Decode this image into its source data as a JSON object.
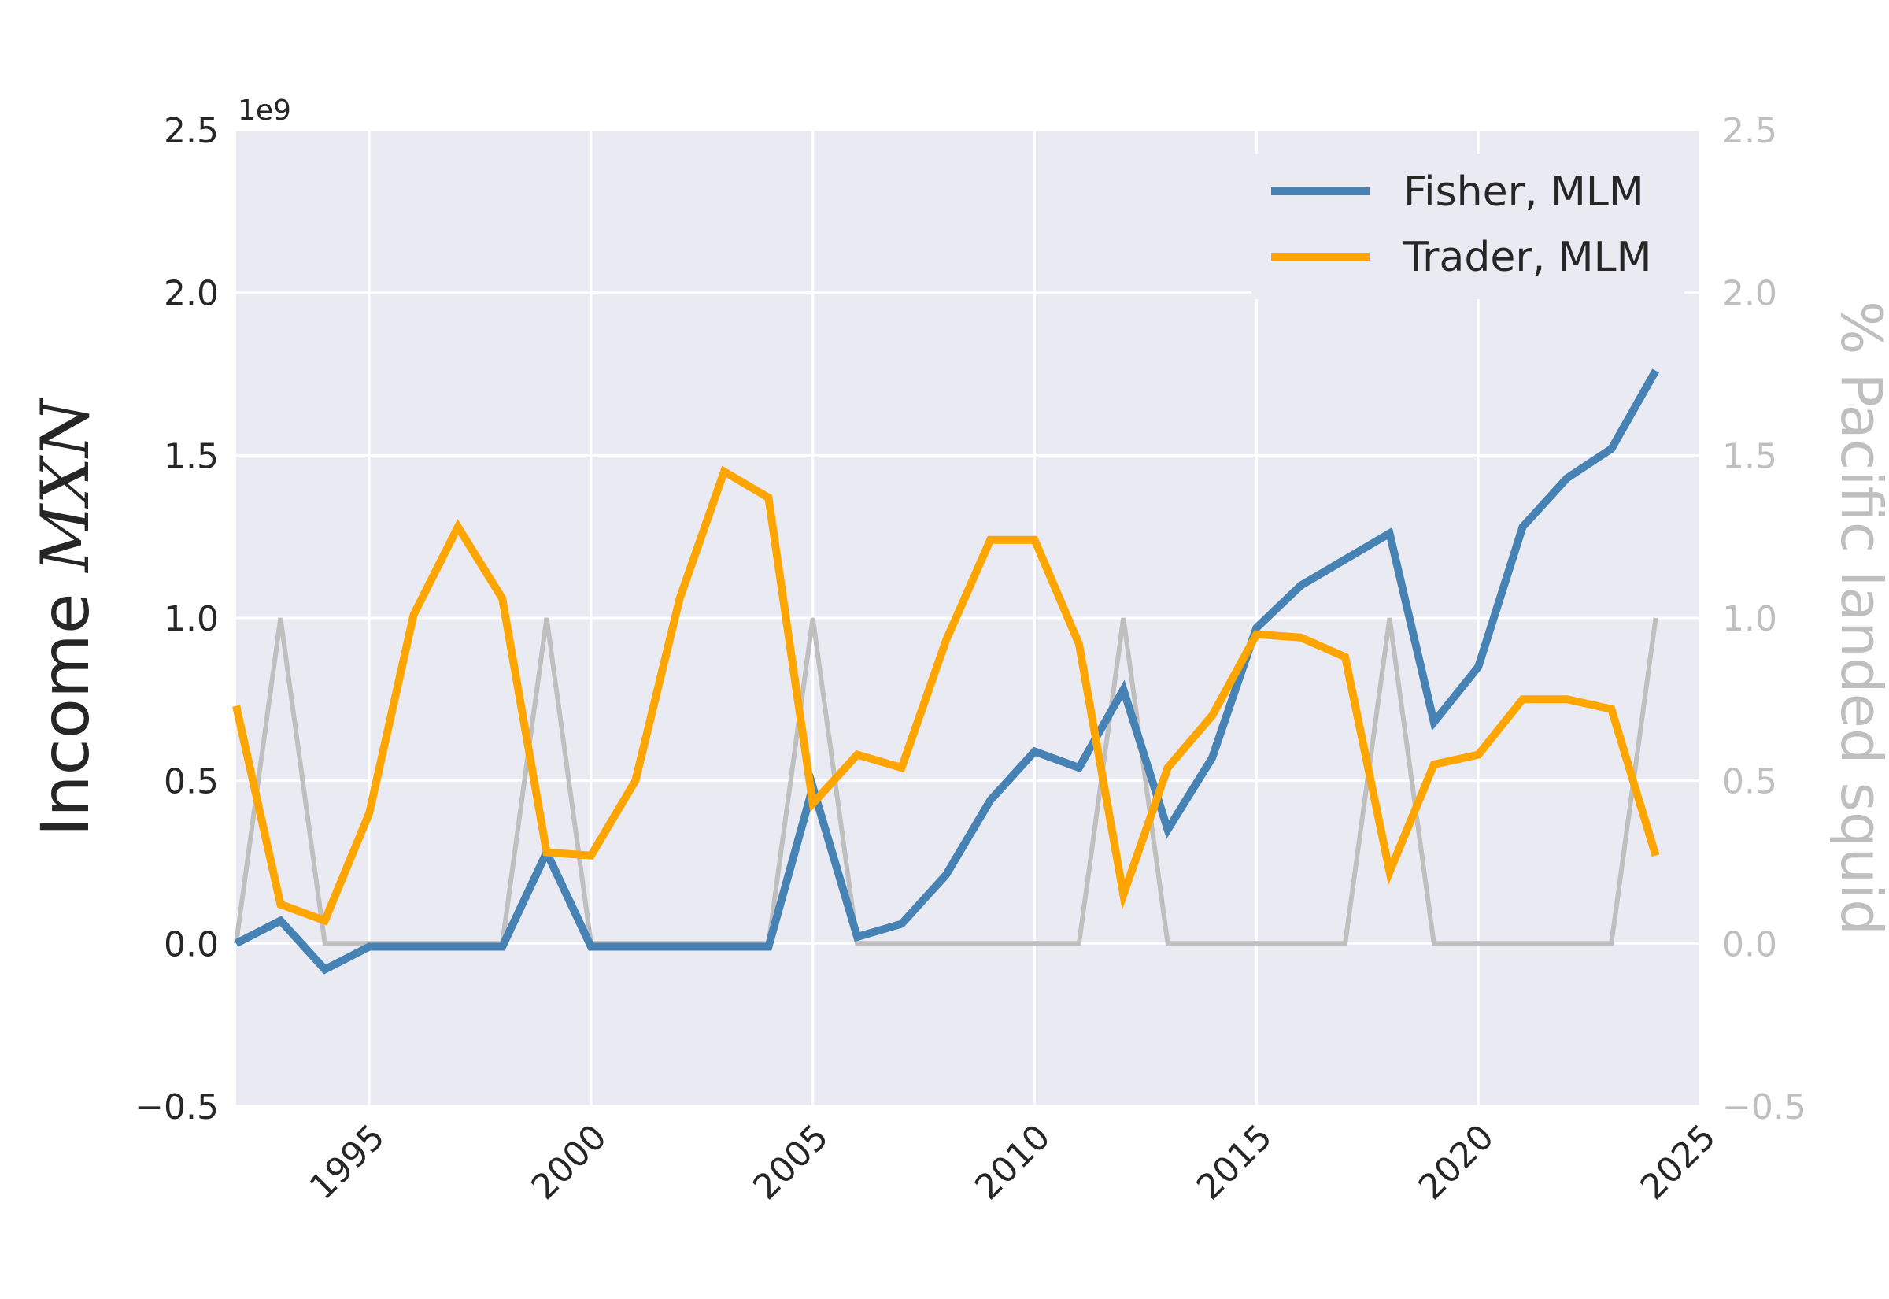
{
  "chart_data": {
    "type": "line",
    "ylabel": "Income MXN",
    "ylabel_prefix": "Income ",
    "ylabel_unit": "MXN",
    "y_offset_text": "1e9",
    "y2label": "% Pacific landed squid",
    "xlim": [
      1992,
      2025
    ],
    "ylim": [
      -0.5,
      2.5
    ],
    "y2lim": [
      -0.5,
      2.5
    ],
    "x_ticks": [
      1995,
      2000,
      2005,
      2010,
      2015,
      2020,
      2025
    ],
    "x_tick_labels": [
      "1995",
      "2000",
      "2005",
      "2010",
      "2015",
      "2020",
      "2025"
    ],
    "y_ticks": [
      -0.5,
      0.0,
      0.5,
      1.0,
      1.5,
      2.0,
      2.5
    ],
    "y_tick_labels": [
      "−0.5",
      "0.0",
      "0.5",
      "1.0",
      "1.5",
      "2.0",
      "2.5"
    ],
    "y2_ticks": [
      -0.5,
      0.0,
      0.5,
      1.0,
      1.5,
      2.0,
      2.5
    ],
    "y2_tick_labels": [
      "−0.5",
      "0.0",
      "0.5",
      "1.0",
      "1.5",
      "2.0",
      "2.5"
    ],
    "grid": true,
    "legend_position": "top-right",
    "x": [
      1992,
      1993,
      1994,
      1995,
      1996,
      1997,
      1998,
      1999,
      2000,
      2001,
      2002,
      2003,
      2004,
      2005,
      2006,
      2007,
      2008,
      2009,
      2010,
      2011,
      2012,
      2013,
      2014,
      2015,
      2016,
      2017,
      2018,
      2019,
      2020,
      2021,
      2022,
      2023,
      2024
    ],
    "series": [
      {
        "name": "Fisher, MLM",
        "axis": "left",
        "color": "#4682b4",
        "in_legend": true,
        "values": [
          0.0,
          0.07,
          -0.08,
          -0.01,
          -0.01,
          -0.01,
          -0.01,
          0.28,
          -0.01,
          -0.01,
          -0.01,
          -0.01,
          -0.01,
          0.48,
          0.02,
          0.06,
          0.21,
          0.44,
          0.59,
          0.54,
          0.78,
          0.35,
          0.57,
          0.97,
          1.1,
          1.18,
          1.26,
          0.68,
          0.85,
          1.28,
          1.43,
          1.52,
          1.76
        ]
      },
      {
        "name": "Trader, MLM",
        "axis": "left",
        "color": "#ffa500",
        "in_legend": true,
        "values": [
          0.73,
          0.12,
          0.07,
          0.4,
          1.01,
          1.28,
          1.06,
          0.28,
          0.27,
          0.5,
          1.06,
          1.45,
          1.37,
          0.43,
          0.58,
          0.54,
          0.93,
          1.24,
          1.24,
          0.92,
          0.15,
          0.54,
          0.7,
          0.95,
          0.94,
          0.88,
          0.22,
          0.55,
          0.58,
          0.75,
          0.75,
          0.72,
          0.27
        ]
      },
      {
        "name": "",
        "axis": "right",
        "color": "#bfbfbf",
        "in_legend": false,
        "values": [
          0,
          1,
          0,
          0,
          0,
          0,
          0,
          1,
          0,
          0,
          0,
          0,
          0,
          1,
          0,
          0,
          0,
          0,
          0,
          0,
          1,
          0,
          0,
          0,
          0,
          0,
          1,
          0,
          0,
          0,
          0,
          0,
          1
        ]
      }
    ]
  }
}
